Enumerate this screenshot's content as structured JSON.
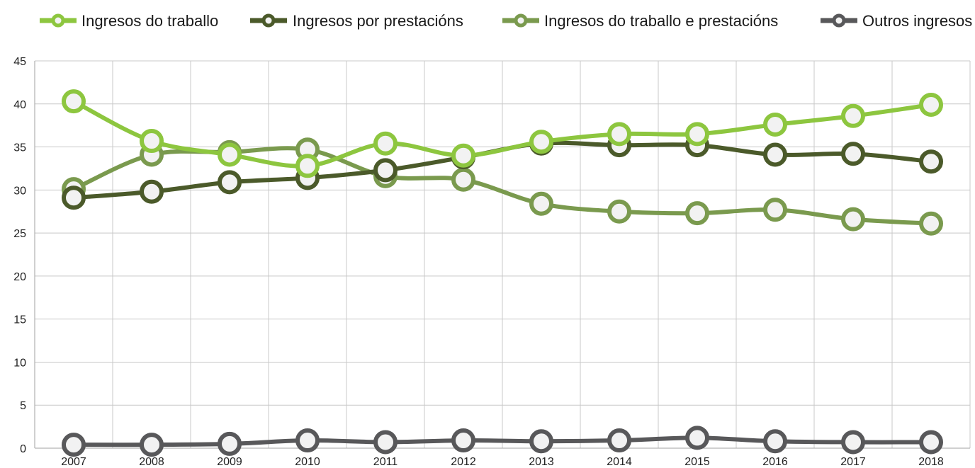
{
  "chart_data": {
    "type": "line",
    "title": "",
    "xlabel": "",
    "ylabel": "",
    "x": [
      "2007",
      "2008",
      "2009",
      "2010",
      "2011",
      "2012",
      "2013",
      "2014",
      "2015",
      "2016",
      "2017",
      "2018"
    ],
    "ylim": [
      0,
      45
    ],
    "yticks": [
      "0",
      "5",
      "10",
      "15",
      "20",
      "25",
      "30",
      "35",
      "40",
      "45"
    ],
    "grid": true,
    "legend_position": "top",
    "series": [
      {
        "name": "Ingresos do traballo",
        "color": "#8dc63f",
        "values": [
          40.3,
          35.7,
          34.1,
          32.8,
          35.4,
          34.0,
          35.6,
          36.5,
          36.5,
          37.6,
          38.6,
          39.9
        ]
      },
      {
        "name": "Ingresos por prestacións",
        "color": "#4b5a2a",
        "values": [
          29.1,
          29.8,
          30.9,
          31.4,
          32.3,
          33.8,
          35.4,
          35.2,
          35.2,
          34.1,
          34.2,
          33.3
        ]
      },
      {
        "name": "Ingresos do traballo e prestacións",
        "color": "#7a9a4e",
        "values": [
          30.1,
          34.1,
          34.4,
          34.7,
          31.6,
          31.2,
          28.4,
          27.5,
          27.3,
          27.7,
          26.6,
          26.1
        ]
      },
      {
        "name": "Outros ingresos",
        "color": "#58585a",
        "values": [
          0.4,
          0.4,
          0.5,
          0.9,
          0.7,
          0.9,
          0.8,
          0.9,
          1.2,
          0.8,
          0.7,
          0.7
        ]
      }
    ]
  }
}
